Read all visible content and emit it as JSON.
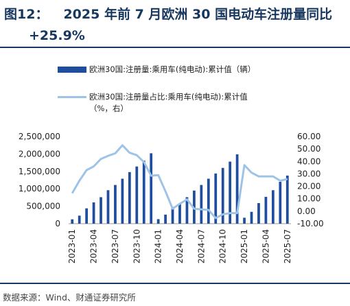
{
  "header": {
    "figure_no": "图12：",
    "title_line1": "2025 年前 7 月欧洲 30 国电动车注册量同比",
    "title_line2": "+25.9%"
  },
  "source": "数据来源：Wind、财通证券研究所",
  "colors": {
    "bar": "#1f4e9e",
    "line": "#9dc3e6",
    "rule": "#17375e",
    "title": "#17375e"
  },
  "chart_data": {
    "type": "bar",
    "title": "",
    "series": [
      {
        "name": "欧洲30国:注册量:乘用车(纯电动):累计值（辆）",
        "type": "bar",
        "axis": "left",
        "values": [
          125000,
          230000,
          440000,
          610000,
          760000,
          960000,
          1110000,
          1290000,
          1480000,
          1640000,
          1810000,
          2020000,
          130000,
          260000,
          480000,
          580000,
          760000,
          950000,
          1110000,
          1290000,
          1440000,
          1600000,
          1780000,
          1990000,
          170000,
          340000,
          590000,
          770000,
          960000,
          1200000,
          1380000
        ]
      },
      {
        "name": "欧洲30国:注册量占比:乘用车(纯电动):累计值（%，右）",
        "type": "line",
        "axis": "right",
        "values": [
          14.5,
          24.5,
          33.0,
          36.0,
          42.0,
          44.5,
          46.5,
          53.0,
          47.0,
          45.0,
          39.5,
          28.5,
          29.0,
          16.0,
          2.0,
          6.0,
          9.5,
          2.0,
          1.5,
          1.0,
          -5.5,
          -2.5,
          -1.5,
          -1.5,
          37.0,
          31.0,
          28.0,
          28.0,
          28.0,
          24.5,
          25.9
        ]
      }
    ],
    "x_tick_labels": [
      "2023-01",
      "2023-04",
      "2023-07",
      "2023-10",
      "2024-01",
      "2024-04",
      "2024-07",
      "2024-10",
      "2025-01",
      "2025-04",
      "2025-07"
    ],
    "y_left": {
      "min": 0,
      "max": 2500000,
      "step": 500000,
      "tick_labels": [
        "0",
        "500,000",
        "1,000,000",
        "1,500,000",
        "2,000,000",
        "2,500,000"
      ]
    },
    "y_right": {
      "min": -10,
      "max": 60,
      "step": 10,
      "tick_labels": [
        "-10.00",
        "0.00",
        "10.00",
        "20.00",
        "30.00",
        "40.00",
        "50.00",
        "60.00"
      ]
    },
    "grid": false,
    "legend_position": "top"
  }
}
